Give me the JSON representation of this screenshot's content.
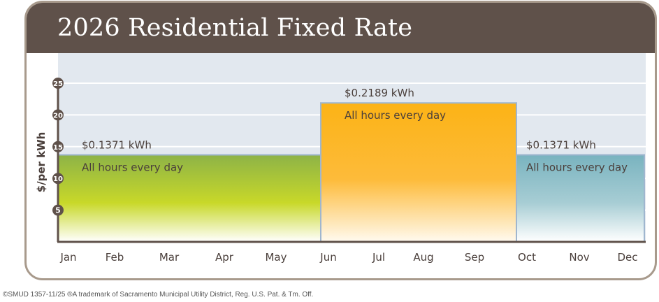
{
  "title": "2026 Residential Fixed Rate",
  "footer": "©SMUD 1357-11/25  ®A trademark of Sacramento Municipal Utility District, Reg. U.S. Pat. & Tm. Off.",
  "chart_data": {
    "type": "bar",
    "title": "2026 Residential Fixed Rate",
    "ylabel": "$/per kWh",
    "ylim": [
      0,
      25
    ],
    "yticks": [
      "5",
      "10",
      "15",
      "20",
      "25"
    ],
    "ytick_values": [
      5,
      10,
      15,
      20,
      25
    ],
    "grid": true,
    "categories": [
      "Jan",
      "Feb",
      "Mar",
      "Apr",
      "May",
      "Jun",
      "Jul",
      "Aug",
      "Sep",
      "Oct",
      "Nov",
      "Dec"
    ],
    "periods": [
      {
        "from": "Jan",
        "to": "May",
        "value": 13.71,
        "price_label": "$0.1371 kWh",
        "note": "All hours every day",
        "color_top": "#8db347",
        "color_mid": "#c8d829",
        "color_bottom": "#ffffff"
      },
      {
        "from": "Jun",
        "to": "Sep",
        "value": 21.89,
        "price_label": "$0.2189 kWh",
        "note": "All hours every day",
        "color_top": "#fcb316",
        "color_mid": "#fdbb3a",
        "color_bottom": "#fffaf0"
      },
      {
        "from": "Oct",
        "to": "Dec",
        "value": 13.71,
        "price_label": "$0.1371 kWh",
        "note": "All hours every day",
        "color_top": "#79b3bf",
        "color_mid": "#a7cdd4",
        "color_bottom": "#ffffff"
      }
    ]
  }
}
